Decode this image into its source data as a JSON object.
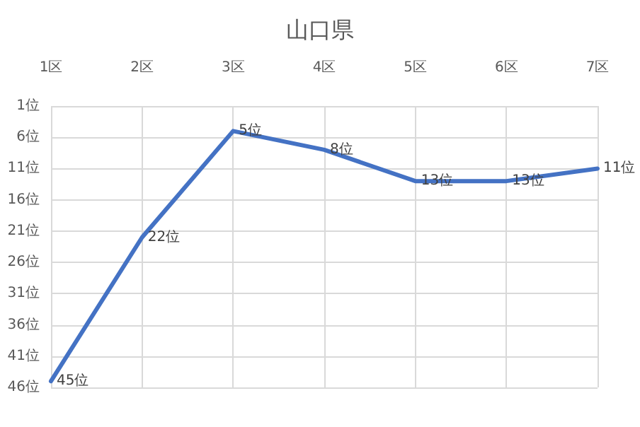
{
  "chart_data": {
    "type": "line",
    "title": "山口県",
    "categories": [
      "1区",
      "2区",
      "3区",
      "4区",
      "5区",
      "6区",
      "7区"
    ],
    "series": [
      {
        "color": "#4472c4",
        "values": [
          45,
          22,
          5,
          8,
          13,
          13,
          11
        ],
        "value_labels": [
          "45位",
          "22位",
          "5位",
          "8位",
          "13位",
          "13位",
          "11位"
        ]
      }
    ],
    "ylim": [
      46,
      1
    ],
    "yticks": [
      {
        "value": 1,
        "label": "1位"
      },
      {
        "value": 6,
        "label": "6位"
      },
      {
        "value": 11,
        "label": "11位"
      },
      {
        "value": 16,
        "label": "16位"
      },
      {
        "value": 21,
        "label": "21位"
      },
      {
        "value": 26,
        "label": "26位"
      },
      {
        "value": 31,
        "label": "31位"
      },
      {
        "value": 36,
        "label": "36位"
      },
      {
        "value": 41,
        "label": "41位"
      },
      {
        "value": 46,
        "label": "46位"
      }
    ],
    "grid": true,
    "marker": "none",
    "line_style": "solid"
  }
}
